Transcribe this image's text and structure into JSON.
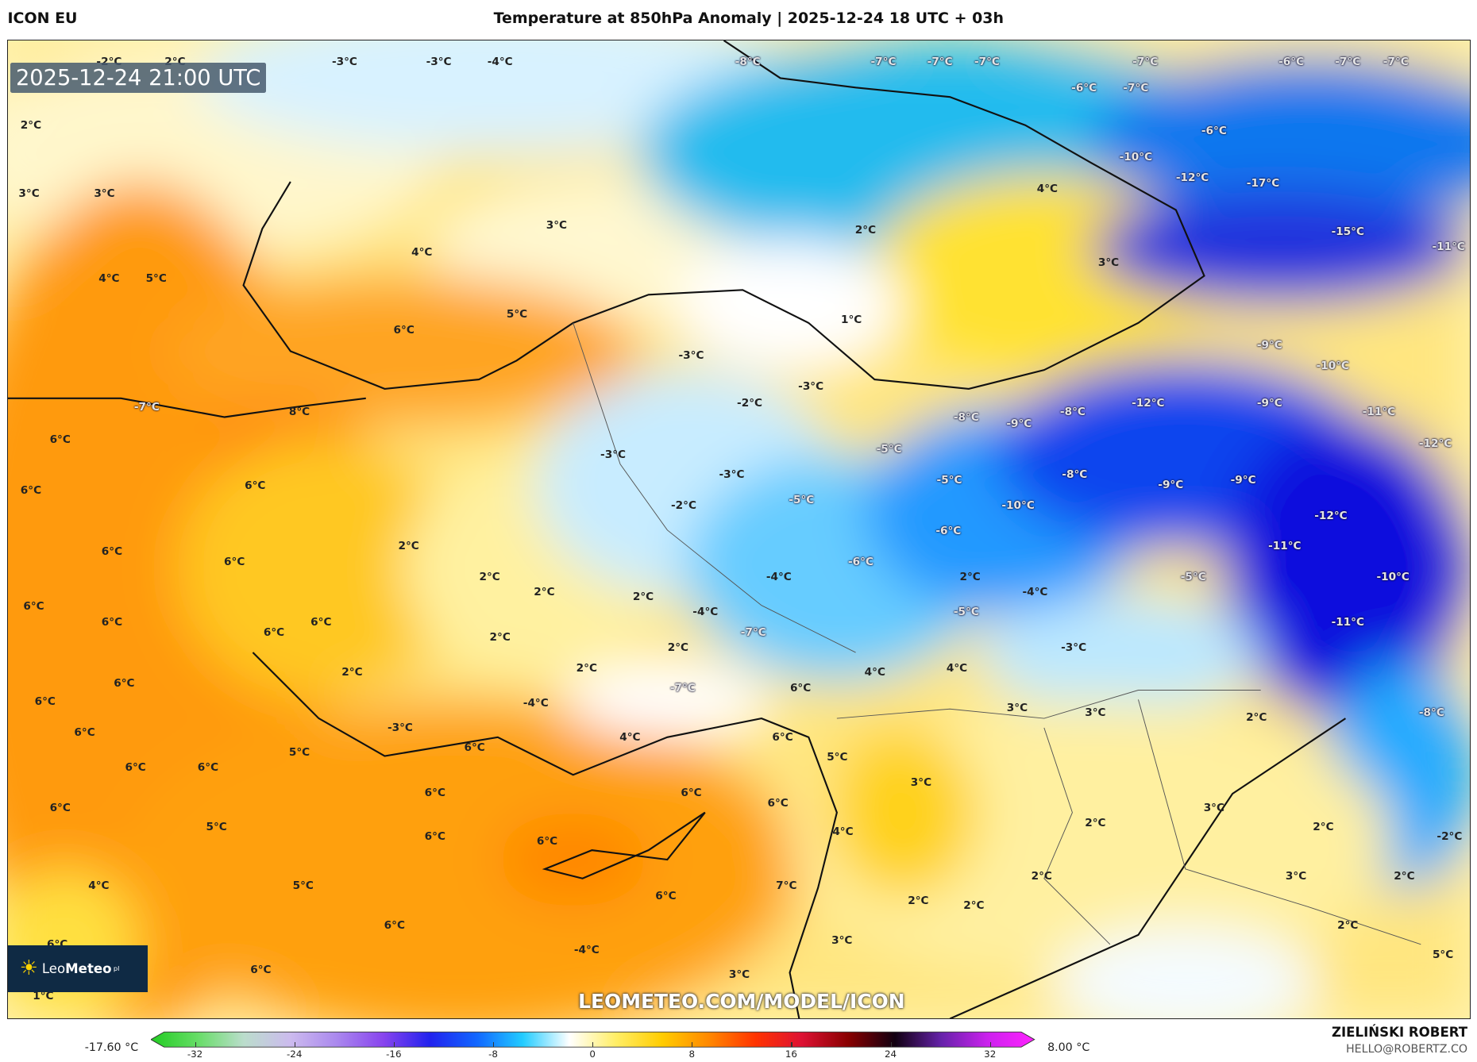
{
  "header": {
    "model": "ICON EU",
    "title": "Temperature at 850hPa Anomaly | 2025-12-24 18 UTC + 03h"
  },
  "map": {
    "valid_time": "2025-12-24 21:00 UTC",
    "logo": {
      "name_light": "Leo",
      "name_bold": "Meteo",
      "suffix": "pl"
    },
    "watermark_url": "LEOMETEO.COM/MODEL/ICON",
    "labels": [
      "-2°C",
      "2°C",
      "-3°C",
      "-3°C",
      "-4°C",
      "-8°C",
      "-7°C",
      "-7°C",
      "-7°C",
      "-7°C",
      "-6°C",
      "-7°C",
      "-7°C",
      "-6°C",
      "-7°C",
      "2°C",
      "-6°C",
      "-10°C",
      "-12°C",
      "-17°C",
      "3°C",
      "3°C",
      "4°C",
      "3°C",
      "2°C",
      "-15°C",
      "4°C",
      "-11°C",
      "3°C",
      "4°C",
      "5°C",
      "5°C",
      "1°C",
      "6°C",
      "-3°C",
      "-9°C",
      "-10°C",
      "-3°C",
      "-2°C",
      "-12°C",
      "-9°C",
      "-7°C",
      "8°C",
      "-8°C",
      "-9°C",
      "-8°C",
      "-11°C",
      "6°C",
      "-12°C",
      "-5°C",
      "-3°C",
      "-3°C",
      "-8°C",
      "6°C",
      "6°C",
      "-5°C",
      "-9°C",
      "-9°C",
      "-5°C",
      "-2°C",
      "-10°C",
      "-12°C",
      "-6°C",
      "2°C",
      "-11°C",
      "6°C",
      "6°C",
      "-6°C",
      "2°C",
      "-4°C",
      "2°C",
      "-5°C",
      "-10°C",
      "2°C",
      "-4°C",
      "2°C",
      "6°C",
      "-4°C",
      "-5°C",
      "6°C",
      "6°C",
      "6°C",
      "-11°C",
      "-7°C",
      "2°C",
      "2°C",
      "-3°C",
      "2°C",
      "2°C",
      "4°C",
      "4°C",
      "6°C",
      "6°C",
      "-7°C",
      "6°C",
      "-4°C",
      "3°C",
      "3°C",
      "2°C",
      "-8°C",
      "-3°C",
      "6°C",
      "4°C",
      "6°C",
      "6°C",
      "5°C",
      "5°C",
      "6°C",
      "6°C",
      "3°C",
      "6°C",
      "6°C",
      "6°C",
      "3°C",
      "6°C",
      "2°C",
      "5°C",
      "2°C",
      "4°C",
      "6°C",
      "6°C",
      "-2°C",
      "4°C",
      "5°C",
      "7°C",
      "2°C",
      "3°C",
      "2°C",
      "6°C",
      "2°C",
      "2°C",
      "2°C",
      "6°C",
      "6°C",
      "-4°C",
      "3°C",
      "5°C",
      "6°C",
      "3°C",
      "1°C"
    ]
  },
  "colorbar": {
    "min_label": "-17.60 °C",
    "max_label": "8.00 °C",
    "ticks": [
      "-32",
      "-24",
      "-16",
      "-8",
      "0",
      "8",
      "16",
      "24",
      "32"
    ],
    "colors": [
      "#22cc22",
      "#66dd66",
      "#bbddcc",
      "#ccbbee",
      "#aa88ee",
      "#8844ee",
      "#2222ee",
      "#1166ff",
      "#22ccff",
      "#ffffff",
      "#ffee66",
      "#ffcc00",
      "#ff8800",
      "#ff3300",
      "#dd1133",
      "#880000",
      "#110011",
      "#6622aa",
      "#cc22ee",
      "#ff22ff"
    ]
  },
  "credits": {
    "author": "ZIELIŃSKI ROBERT",
    "email": "HELLO@ROBERTZ.CO"
  }
}
